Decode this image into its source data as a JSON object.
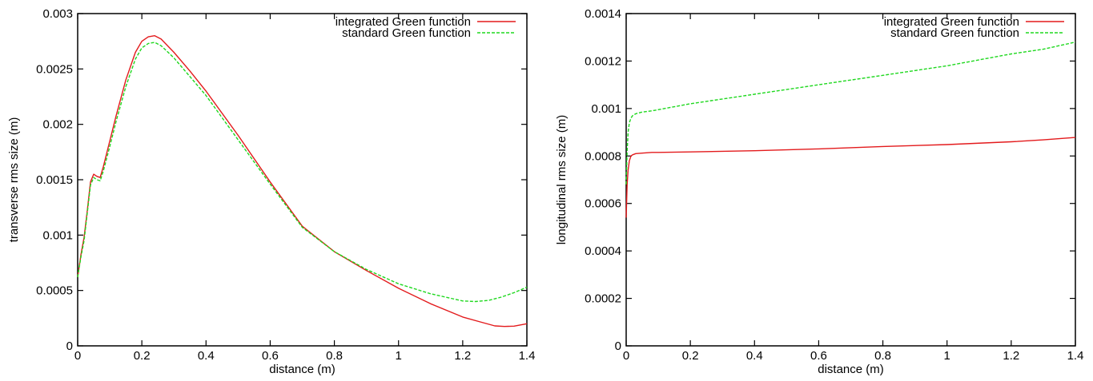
{
  "chart_data": [
    {
      "type": "line",
      "xlabel": "distance (m)",
      "ylabel": "transverse rms size (m)",
      "xlim": [
        0,
        1.4
      ],
      "ylim": [
        0,
        0.003
      ],
      "xticks": [
        "0",
        "0.2",
        "0.4",
        "0.6",
        "0.8",
        "1",
        "1.2",
        "1.4"
      ],
      "yticks": [
        "0",
        "0.0005",
        "0.001",
        "0.0015",
        "0.002",
        "0.0025",
        "0.003"
      ],
      "grid": false,
      "legend_position": "top-right",
      "series": [
        {
          "name": "integrated Green function",
          "color": "#e31a1c",
          "dash": "solid",
          "x": [
            0,
            0.01,
            0.02,
            0.03,
            0.04,
            0.05,
            0.06,
            0.07,
            0.08,
            0.1,
            0.12,
            0.15,
            0.18,
            0.2,
            0.22,
            0.24,
            0.26,
            0.3,
            0.35,
            0.4,
            0.5,
            0.6,
            0.7,
            0.8,
            0.9,
            1.0,
            1.1,
            1.2,
            1.25,
            1.3,
            1.33,
            1.36,
            1.4
          ],
          "y": [
            0.00062,
            0.00082,
            0.00098,
            0.00122,
            0.00148,
            0.00155,
            0.00153,
            0.00152,
            0.00162,
            0.00185,
            0.00208,
            0.0024,
            0.00265,
            0.00275,
            0.00279,
            0.0028,
            0.00277,
            0.00265,
            0.00248,
            0.0023,
            0.0019,
            0.00148,
            0.00108,
            0.00085,
            0.00068,
            0.00052,
            0.00038,
            0.00026,
            0.00022,
            0.00018,
            0.000175,
            0.000178,
            0.0002
          ]
        },
        {
          "name": "standard Green function",
          "color": "#1ed81e",
          "dash": "dashed",
          "x": [
            0,
            0.01,
            0.02,
            0.03,
            0.04,
            0.05,
            0.06,
            0.07,
            0.08,
            0.1,
            0.12,
            0.15,
            0.18,
            0.2,
            0.22,
            0.24,
            0.26,
            0.3,
            0.35,
            0.4,
            0.5,
            0.6,
            0.7,
            0.8,
            0.9,
            1.0,
            1.1,
            1.2,
            1.24,
            1.28,
            1.32,
            1.36,
            1.4
          ],
          "y": [
            0.00062,
            0.0008,
            0.00095,
            0.0012,
            0.00145,
            0.00152,
            0.0015,
            0.00149,
            0.00158,
            0.0018,
            0.00203,
            0.00234,
            0.00259,
            0.00269,
            0.00273,
            0.00274,
            0.00271,
            0.0026,
            0.00243,
            0.00226,
            0.00186,
            0.00146,
            0.00107,
            0.00085,
            0.00069,
            0.00056,
            0.00047,
            0.000405,
            0.0004,
            0.00041,
            0.00044,
            0.00048,
            0.00053
          ]
        }
      ]
    },
    {
      "type": "line",
      "xlabel": "distance (m)",
      "ylabel": "longitudinal rms size (m)",
      "xlim": [
        0,
        1.4
      ],
      "ylim": [
        0,
        0.0014
      ],
      "xticks": [
        "0",
        "0.2",
        "0.4",
        "0.6",
        "0.8",
        "1",
        "1.2",
        "1.4"
      ],
      "yticks": [
        "0",
        "0.0002",
        "0.0004",
        "0.0006",
        "0.0008",
        "0.001",
        "0.0012",
        "0.0014"
      ],
      "grid": false,
      "legend_position": "top-right",
      "series": [
        {
          "name": "integrated Green function",
          "color": "#e31a1c",
          "dash": "solid",
          "x": [
            0,
            0.003,
            0.006,
            0.01,
            0.015,
            0.02,
            0.03,
            0.05,
            0.08,
            0.1,
            0.2,
            0.4,
            0.6,
            0.8,
            1.0,
            1.2,
            1.3,
            1.4
          ],
          "y": [
            0.00054,
            0.00068,
            0.00074,
            0.00078,
            0.0008,
            0.000805,
            0.00081,
            0.000812,
            0.000815,
            0.000815,
            0.000817,
            0.000822,
            0.00083,
            0.00084,
            0.000848,
            0.00086,
            0.000868,
            0.000878
          ]
        },
        {
          "name": "standard Green function",
          "color": "#1ed81e",
          "dash": "dashed",
          "x": [
            0,
            0.003,
            0.006,
            0.01,
            0.015,
            0.02,
            0.03,
            0.05,
            0.08,
            0.1,
            0.2,
            0.4,
            0.6,
            0.8,
            1.0,
            1.2,
            1.3,
            1.4
          ],
          "y": [
            0.00068,
            0.00082,
            0.0009,
            0.00094,
            0.00096,
            0.00097,
            0.000978,
            0.000985,
            0.00099,
            0.000995,
            0.00102,
            0.00106,
            0.0011,
            0.00114,
            0.00118,
            0.00123,
            0.00125,
            0.00128
          ]
        }
      ]
    }
  ]
}
